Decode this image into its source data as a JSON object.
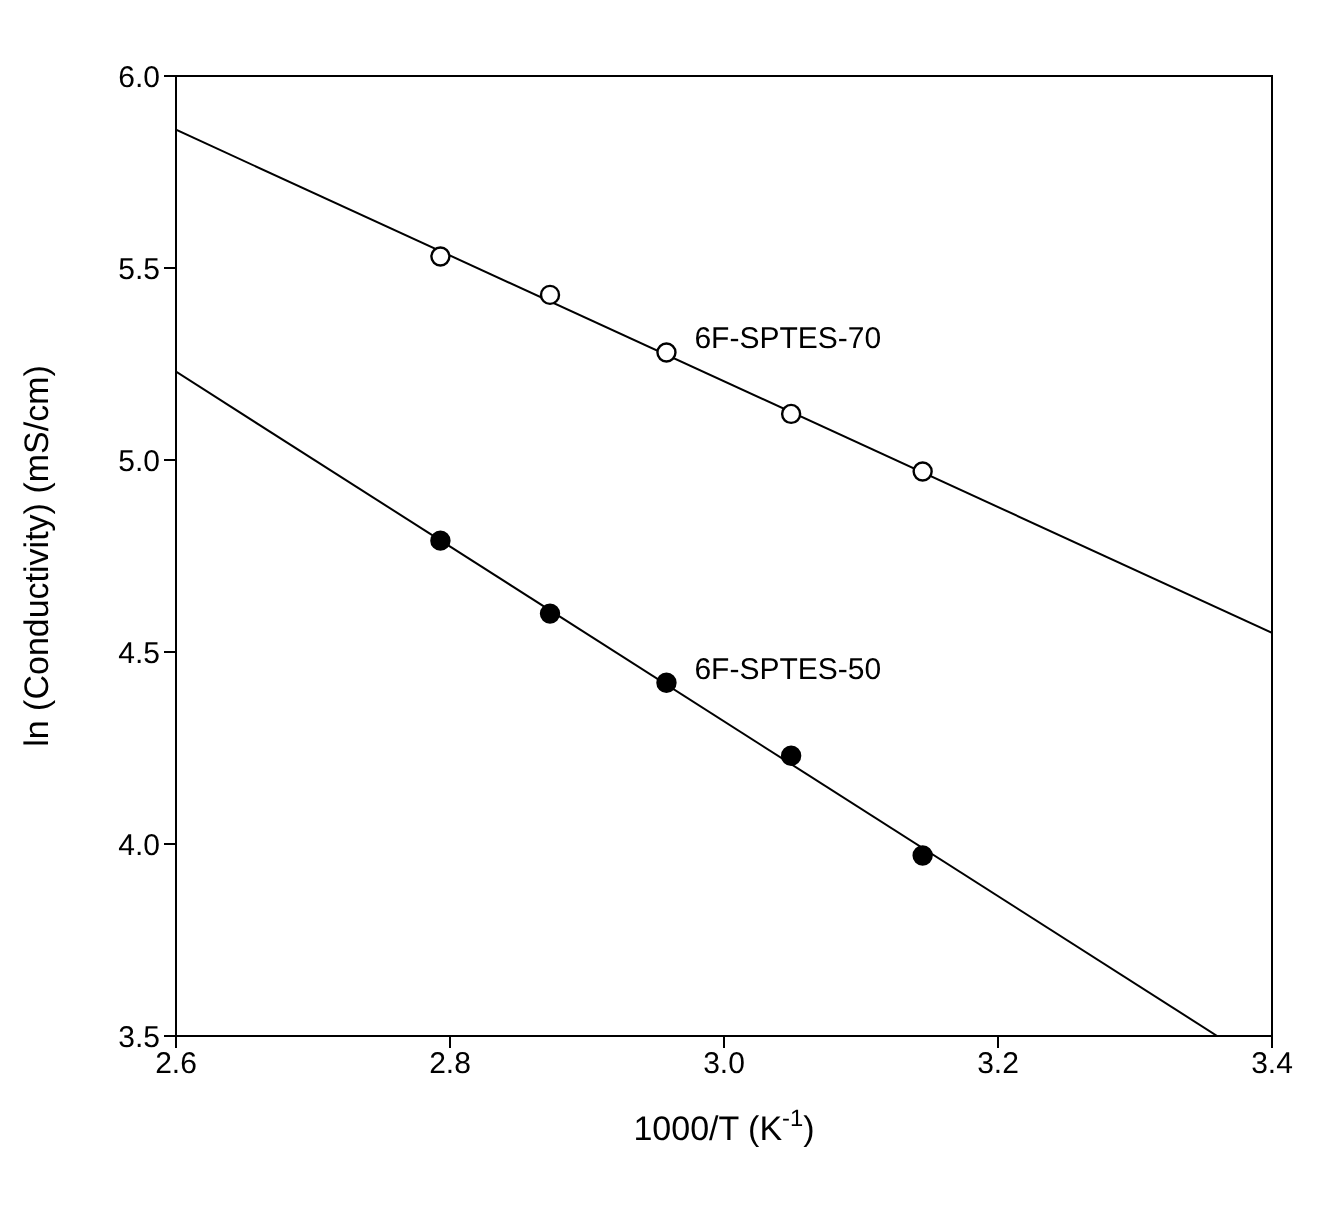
{
  "chart_data": {
    "type": "scatter",
    "xlabel": "1000/T (K$^{-1}$)",
    "ylabel": "ln (Conductivity) (mS/cm)",
    "xlim": [
      2.6,
      3.4
    ],
    "ylim": [
      3.5,
      6.0
    ],
    "xticks": [
      {
        "value": 2.6,
        "label": "2.6"
      },
      {
        "value": 2.8,
        "label": "2.8"
      },
      {
        "value": 3.0,
        "label": "3.0"
      },
      {
        "value": 3.2,
        "label": "3.2"
      },
      {
        "value": 3.4,
        "label": "3.4"
      }
    ],
    "yticks": [
      {
        "value": 3.5,
        "label": "3.5"
      },
      {
        "value": 4.0,
        "label": "4.0"
      },
      {
        "value": 4.5,
        "label": "4.5"
      },
      {
        "value": 5.0,
        "label": "5.0"
      },
      {
        "value": 5.5,
        "label": "5.5"
      },
      {
        "value": 6.0,
        "label": "6.0"
      }
    ],
    "grid": false,
    "legend": false,
    "series": [
      {
        "name": "6F-SPTES-70",
        "marker": "circle",
        "color": "#ffffff",
        "x": [
          2.793,
          2.873,
          2.958,
          3.049,
          3.145
        ],
        "values": [
          5.53,
          5.43,
          5.28,
          5.12,
          4.97
        ]
      },
      {
        "name": "6F-SPTES-50",
        "marker": "circle",
        "color": "#000000",
        "x": [
          2.793,
          2.873,
          2.958,
          3.049,
          3.145
        ],
        "values": [
          4.79,
          4.6,
          4.42,
          4.23,
          3.97
        ]
      },
      {
        "type": "line",
        "color": "#000000",
        "x": [
          2.6,
          3.4
        ],
        "values": [
          5.86,
          4.55
        ],
        "marker": "none"
      },
      {
        "type": "line",
        "color": "#000000",
        "x": [
          2.6,
          3.36
        ],
        "values": [
          5.23,
          3.5
        ],
        "marker": "none"
      }
    ]
  }
}
